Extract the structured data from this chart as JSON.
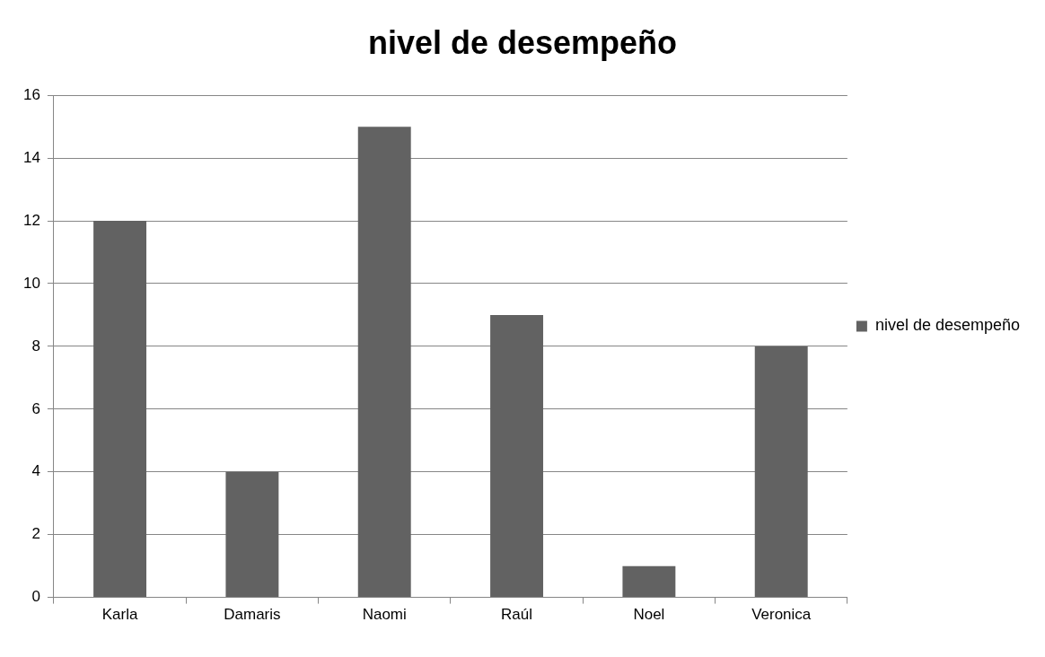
{
  "chart_data": {
    "type": "bar",
    "title": "nivel de desempeño",
    "categories": [
      "Karla",
      "Damaris",
      "Naomi",
      "Raúl",
      "Noel",
      "Veronica"
    ],
    "series": [
      {
        "name": "nivel de desempeño",
        "color": "#626262",
        "values": [
          12,
          4,
          15,
          9,
          1,
          8
        ]
      }
    ],
    "ylim": [
      0,
      16
    ],
    "yticks": [
      0,
      2,
      4,
      6,
      8,
      10,
      12,
      14,
      16
    ],
    "grid": "y",
    "legend": "right"
  }
}
